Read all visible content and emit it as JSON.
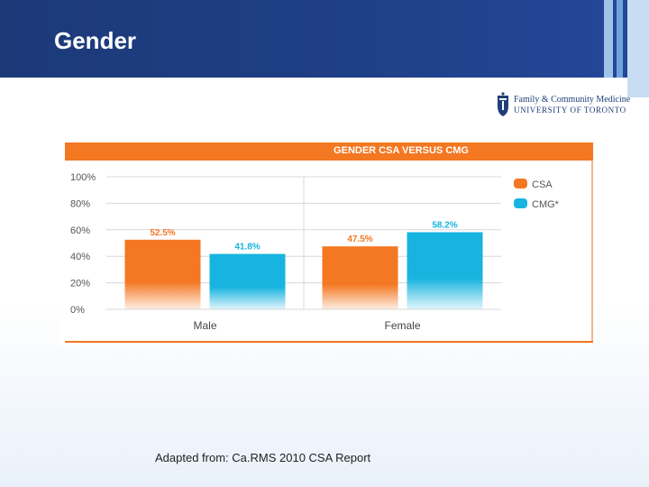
{
  "slide": {
    "title": "Gender",
    "caption": "Adapted from:  Ca.RMS 2010 CSA Report"
  },
  "logo": {
    "line1": "Family & Community Medicine",
    "line2": "UNIVERSITY OF TORONTO"
  },
  "colors": {
    "csa": "#f47721",
    "cmg": "#18b4e0",
    "header": "#1f3f86",
    "grid": "#d8d8d8"
  },
  "chart_data": {
    "type": "bar",
    "title": "GENDER CSA VERSUS CMG",
    "categories": [
      "Male",
      "Female"
    ],
    "series": [
      {
        "name": "CSA",
        "values": [
          52.5,
          47.5
        ],
        "labels": [
          "52.5%",
          "47.5%"
        ]
      },
      {
        "name": "CMG*",
        "values": [
          41.8,
          58.2
        ],
        "labels": [
          "41.8%",
          "58.2%"
        ]
      }
    ],
    "yticks": [
      "0%",
      "20%",
      "40%",
      "60%",
      "80%",
      "100%"
    ],
    "ylim": [
      0,
      100
    ],
    "xlabel": "",
    "ylabel": "",
    "legend": "right"
  }
}
